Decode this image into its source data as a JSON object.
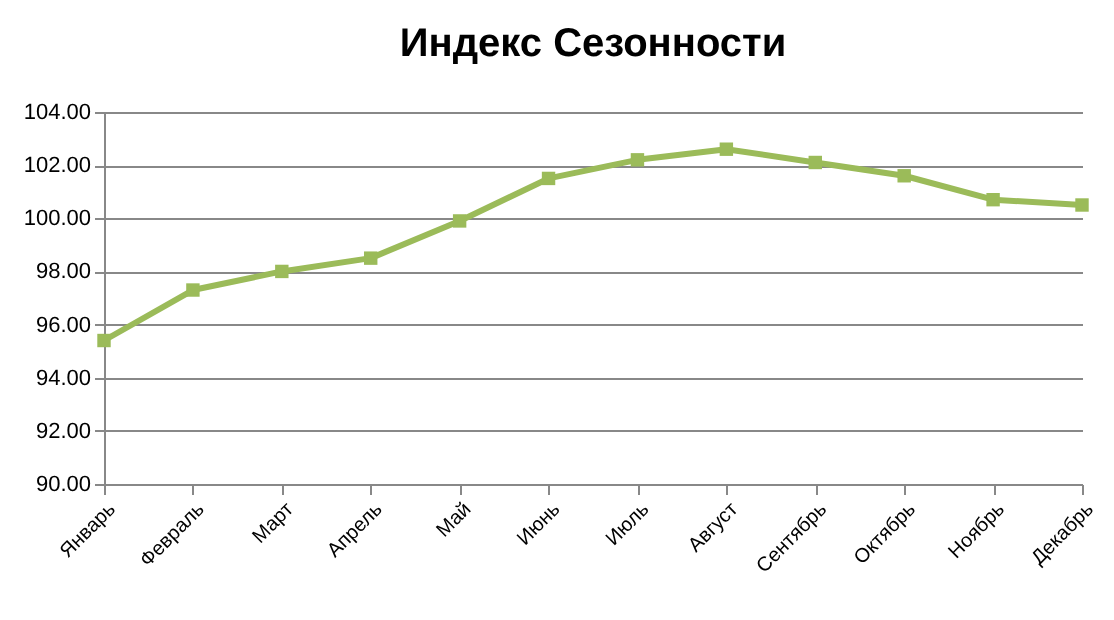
{
  "chart_data": {
    "type": "line",
    "title": "Индекс Сезонности",
    "categories": [
      "Январь",
      "Февраль",
      "Март",
      "Апрель",
      "Май",
      "Июнь",
      "Июль",
      "Август",
      "Сентябрь",
      "Октябрь",
      "Ноябрь",
      "Декабрь"
    ],
    "series": [
      {
        "color": "#9bbb59",
        "values": [
          95.4,
          97.3,
          98.0,
          98.5,
          99.9,
          101.5,
          102.2,
          102.6,
          102.1,
          101.6,
          100.7,
          100.5
        ]
      }
    ],
    "ylim": [
      90,
      104
    ],
    "yticks": [
      {
        "value": 90,
        "label": "90.00"
      },
      {
        "value": 92,
        "label": "92.00"
      },
      {
        "value": 94,
        "label": "94.00"
      },
      {
        "value": 96,
        "label": "96.00"
      },
      {
        "value": 98,
        "label": "98.00"
      },
      {
        "value": 100,
        "label": "100.00"
      },
      {
        "value": 102,
        "label": "102.00"
      },
      {
        "value": 104,
        "label": "104.00"
      }
    ],
    "grid": "y",
    "marker": "square",
    "line_style": "solid",
    "legend": false
  }
}
